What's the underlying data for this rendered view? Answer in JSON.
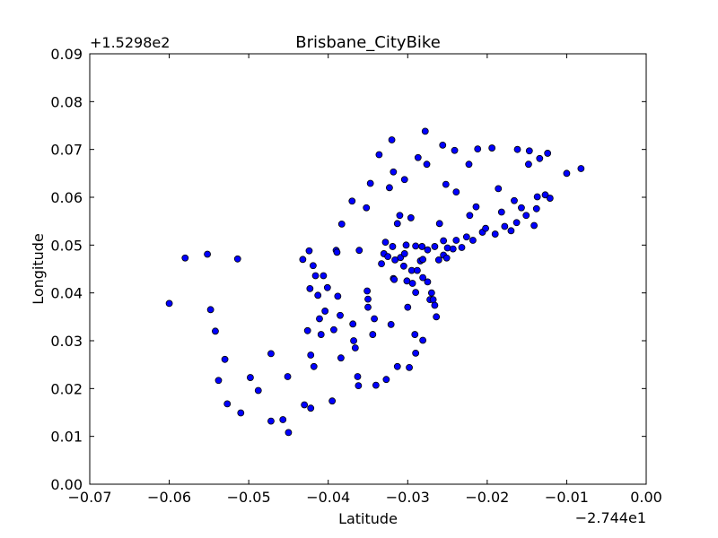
{
  "chart_data": {
    "type": "scatter",
    "title": "Brisbane_CityBike",
    "xlabel": "Latitude",
    "ylabel": "Longitude",
    "x_offset_label": "−2.744e1",
    "y_offset_label": "+1.5298e2",
    "xlim": [
      -0.07,
      0.0
    ],
    "ylim": [
      0.0,
      0.09
    ],
    "x_ticks": [
      -0.07,
      -0.06,
      -0.05,
      -0.04,
      -0.03,
      -0.02,
      -0.01,
      0.0
    ],
    "x_tick_labels": [
      "−0.07",
      "−0.06",
      "−0.05",
      "−0.04",
      "−0.03",
      "−0.02",
      "−0.01",
      "0.00"
    ],
    "y_ticks": [
      0.0,
      0.01,
      0.02,
      0.03,
      0.04,
      0.05,
      0.06,
      0.07,
      0.08,
      0.09
    ],
    "y_tick_labels": [
      "0.00",
      "0.01",
      "0.02",
      "0.03",
      "0.04",
      "0.05",
      "0.06",
      "0.07",
      "0.08",
      "0.09"
    ],
    "grid": false,
    "marker_fill": "#0000ff",
    "marker_edge": "#000000",
    "points": [
      [
        -0.06,
        0.0378
      ],
      [
        -0.058,
        0.0473
      ],
      [
        -0.0552,
        0.0481
      ],
      [
        -0.0548,
        0.0365
      ],
      [
        -0.0542,
        0.032
      ],
      [
        -0.0538,
        0.0217
      ],
      [
        -0.053,
        0.0261
      ],
      [
        -0.0527,
        0.0168
      ],
      [
        -0.0514,
        0.0471
      ],
      [
        -0.051,
        0.0149
      ],
      [
        -0.0498,
        0.0223
      ],
      [
        -0.0488,
        0.0196
      ],
      [
        -0.0472,
        0.0273
      ],
      [
        -0.0472,
        0.0132
      ],
      [
        -0.0457,
        0.0135
      ],
      [
        -0.0451,
        0.0225
      ],
      [
        -0.045,
        0.0108
      ],
      [
        -0.0432,
        0.047
      ],
      [
        -0.043,
        0.0166
      ],
      [
        -0.0426,
        0.0321
      ],
      [
        -0.0424,
        0.0488
      ],
      [
        -0.0423,
        0.0409
      ],
      [
        -0.0422,
        0.027
      ],
      [
        -0.0422,
        0.0159
      ],
      [
        -0.0419,
        0.0457
      ],
      [
        -0.0418,
        0.0246
      ],
      [
        -0.0416,
        0.0436
      ],
      [
        -0.0413,
        0.0395
      ],
      [
        -0.0411,
        0.0346
      ],
      [
        -0.0409,
        0.0313
      ],
      [
        -0.0406,
        0.0436
      ],
      [
        -0.0404,
        0.0362
      ],
      [
        -0.0401,
        0.0411
      ],
      [
        -0.0395,
        0.0174
      ],
      [
        -0.0393,
        0.0323
      ],
      [
        -0.039,
        0.0489
      ],
      [
        -0.0389,
        0.0485
      ],
      [
        -0.0388,
        0.0393
      ],
      [
        -0.0385,
        0.0353
      ],
      [
        -0.0384,
        0.0264
      ],
      [
        -0.0383,
        0.0544
      ],
      [
        -0.037,
        0.0592
      ],
      [
        -0.0369,
        0.0335
      ],
      [
        -0.0368,
        0.03
      ],
      [
        -0.0366,
        0.0285
      ],
      [
        -0.0363,
        0.0225
      ],
      [
        -0.0362,
        0.0206
      ],
      [
        -0.0361,
        0.0489
      ],
      [
        -0.0352,
        0.0578
      ],
      [
        -0.0351,
        0.0404
      ],
      [
        -0.035,
        0.0387
      ],
      [
        -0.035,
        0.037
      ],
      [
        -0.0347,
        0.0629
      ],
      [
        -0.0344,
        0.0313
      ],
      [
        -0.0342,
        0.0346
      ],
      [
        -0.034,
        0.0207
      ],
      [
        -0.0336,
        0.0689
      ],
      [
        -0.0333,
        0.0461
      ],
      [
        -0.033,
        0.0482
      ],
      [
        -0.0328,
        0.0506
      ],
      [
        -0.0327,
        0.0219
      ],
      [
        -0.0325,
        0.0476
      ],
      [
        -0.0323,
        0.062
      ],
      [
        -0.0321,
        0.0334
      ],
      [
        -0.032,
        0.072
      ],
      [
        -0.0319,
        0.0497
      ],
      [
        -0.0318,
        0.0653
      ],
      [
        -0.0318,
        0.043
      ],
      [
        -0.0317,
        0.0428
      ],
      [
        -0.0316,
        0.0469
      ],
      [
        -0.0313,
        0.0246
      ],
      [
        -0.0313,
        0.0545
      ],
      [
        -0.031,
        0.0562
      ],
      [
        -0.0309,
        0.0474
      ],
      [
        -0.0305,
        0.0456
      ],
      [
        -0.0304,
        0.0482
      ],
      [
        -0.0304,
        0.0637
      ],
      [
        -0.0302,
        0.05
      ],
      [
        -0.0301,
        0.0425
      ],
      [
        -0.03,
        0.037
      ],
      [
        -0.0298,
        0.0244
      ],
      [
        -0.0296,
        0.0557
      ],
      [
        -0.0295,
        0.0447
      ],
      [
        -0.0294,
        0.042
      ],
      [
        -0.0291,
        0.0313
      ],
      [
        -0.029,
        0.0401
      ],
      [
        -0.029,
        0.0498
      ],
      [
        -0.029,
        0.0274
      ],
      [
        -0.0288,
        0.0447
      ],
      [
        -0.0287,
        0.0683
      ],
      [
        -0.0284,
        0.0467
      ],
      [
        -0.0282,
        0.0497
      ],
      [
        -0.0281,
        0.047
      ],
      [
        -0.0281,
        0.0301
      ],
      [
        -0.0281,
        0.0432
      ],
      [
        -0.0278,
        0.0738
      ],
      [
        -0.0276,
        0.0669
      ],
      [
        -0.0275,
        0.0423
      ],
      [
        -0.0275,
        0.049
      ],
      [
        -0.0272,
        0.0386
      ],
      [
        -0.027,
        0.04
      ],
      [
        -0.0268,
        0.0386
      ],
      [
        -0.0266,
        0.0374
      ],
      [
        -0.0266,
        0.0497
      ],
      [
        -0.0264,
        0.035
      ],
      [
        -0.0261,
        0.0469
      ],
      [
        -0.026,
        0.0545
      ],
      [
        -0.0256,
        0.0709
      ],
      [
        -0.0255,
        0.0479
      ],
      [
        -0.0255,
        0.0509
      ],
      [
        -0.0252,
        0.0627
      ],
      [
        -0.0251,
        0.0473
      ],
      [
        -0.025,
        0.0494
      ],
      [
        -0.0243,
        0.0492
      ],
      [
        -0.0241,
        0.0698
      ],
      [
        -0.0239,
        0.051
      ],
      [
        -0.0239,
        0.0611
      ],
      [
        -0.0232,
        0.0495
      ],
      [
        -0.0226,
        0.0517
      ],
      [
        -0.0223,
        0.0669
      ],
      [
        -0.0222,
        0.0562
      ],
      [
        -0.0218,
        0.051
      ],
      [
        -0.0214,
        0.058
      ],
      [
        -0.0212,
        0.0701
      ],
      [
        -0.0206,
        0.0527
      ],
      [
        -0.0202,
        0.0535
      ],
      [
        -0.0194,
        0.0703
      ],
      [
        -0.019,
        0.0523
      ],
      [
        -0.0186,
        0.0618
      ],
      [
        -0.0182,
        0.0569
      ],
      [
        -0.0178,
        0.0539
      ],
      [
        -0.017,
        0.053
      ],
      [
        -0.0166,
        0.0593
      ],
      [
        -0.0163,
        0.0547
      ],
      [
        -0.0162,
        0.07
      ],
      [
        -0.0157,
        0.0578
      ],
      [
        -0.0151,
        0.0562
      ],
      [
        -0.0148,
        0.0669
      ],
      [
        -0.0147,
        0.0697
      ],
      [
        -0.0141,
        0.0541
      ],
      [
        -0.0138,
        0.0576
      ],
      [
        -0.0137,
        0.0601
      ],
      [
        -0.0134,
        0.0681
      ],
      [
        -0.0127,
        0.0605
      ],
      [
        -0.0124,
        0.0692
      ],
      [
        -0.0121,
        0.0598
      ],
      [
        -0.01,
        0.065
      ],
      [
        -0.0082,
        0.066
      ]
    ]
  }
}
